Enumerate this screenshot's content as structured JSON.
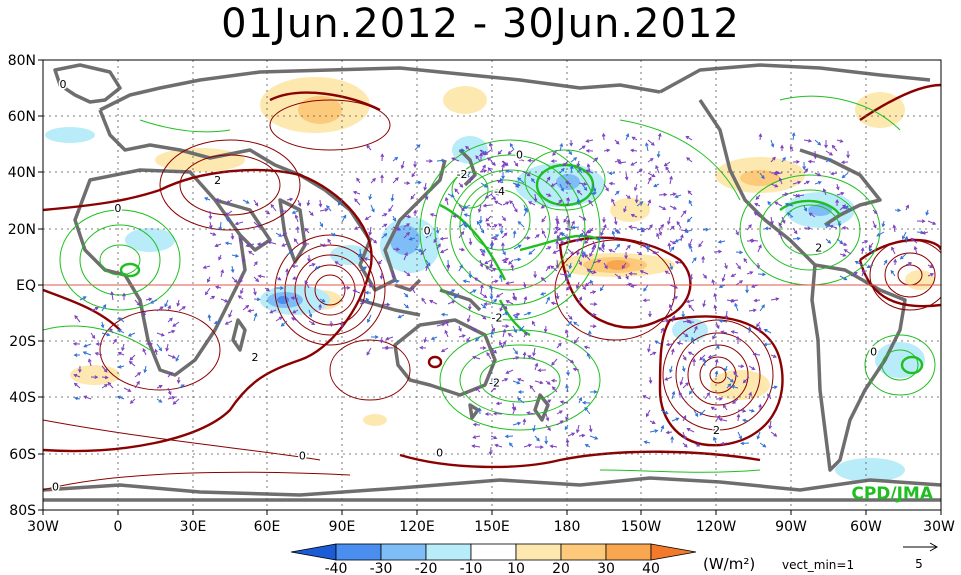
{
  "title": "01Jun.2012 - 30Jun.2012",
  "credit": "CPD/JMA",
  "lat_labels": [
    "80N",
    "60N",
    "40N",
    "20N",
    "EQ",
    "20S",
    "40S",
    "60S",
    "80S"
  ],
  "lon_labels": [
    "30W",
    "0",
    "30E",
    "60E",
    "90E",
    "120E",
    "150E",
    "180",
    "150W",
    "120W",
    "90W",
    "60W",
    "30W"
  ],
  "colorbar": {
    "unit": "(W/m²)",
    "ticks": [
      "-40",
      "-30",
      "-20",
      "-10",
      "10",
      "20",
      "30",
      "40"
    ],
    "colors": [
      "#1a5bd6",
      "#4a8ef0",
      "#7fbdf7",
      "#b9ecf9",
      "#ffffff",
      "#fde9b0",
      "#fcca7a",
      "#f8a650",
      "#f27a2a"
    ]
  },
  "vector_note": "vect_min=1",
  "vector_ref": "5",
  "contour_labels": [
    {
      "text": "0",
      "lon": -22,
      "lat": 70
    },
    {
      "text": "0",
      "lon": 0,
      "lat": 26
    },
    {
      "text": "2",
      "lon": 40,
      "lat": 36
    },
    {
      "text": "-2",
      "lon": 138,
      "lat": 38
    },
    {
      "text": "-4",
      "lon": 153,
      "lat": 32
    },
    {
      "text": "0",
      "lon": 161,
      "lat": 45
    },
    {
      "text": "0",
      "lon": 124,
      "lat": 18
    },
    {
      "text": "-2",
      "lon": 152,
      "lat": -13
    },
    {
      "text": "2",
      "lon": 55,
      "lat": -27
    },
    {
      "text": "-2",
      "lon": 151,
      "lat": -36
    },
    {
      "text": "2",
      "lon": -120,
      "lat": -53
    },
    {
      "text": "0",
      "lon": 74,
      "lat": -62
    },
    {
      "text": "0",
      "lon": 129,
      "lat": -61
    },
    {
      "text": "2",
      "lon": -79,
      "lat": 12
    },
    {
      "text": "0",
      "lon": -57,
      "lat": -25
    },
    {
      "text": "0",
      "lon": -25,
      "lat": -73
    }
  ],
  "colors": {
    "positive": "#8b0000",
    "negative": "#1fbf1f",
    "coast": "#6e6e6e",
    "vector": "#7b3fbf",
    "vector_alt": "#2f6fd6",
    "credit": "#1fbf1f",
    "equator": "#e05a4a"
  }
}
